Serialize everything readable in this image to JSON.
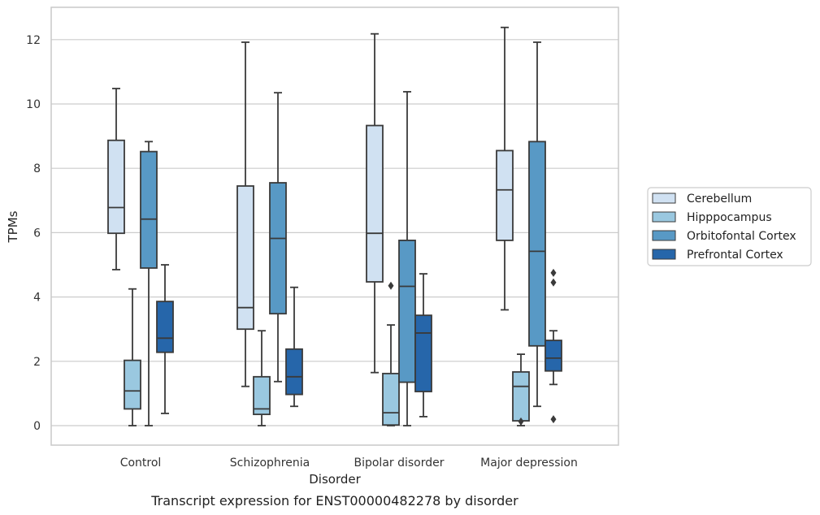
{
  "chart_data": {
    "type": "boxplot",
    "title": "",
    "caption": "Transcript expression for ENST00000482278 by disorder",
    "xlabel": "Disorder",
    "ylabel": "TPMs",
    "ylim": [
      -0.6,
      13
    ],
    "yticks": [
      0,
      2,
      4,
      6,
      8,
      10,
      12
    ],
    "grid": "horizontal",
    "legend_position": "right",
    "categories": [
      "Control",
      "Schizophrenia",
      "Bipolar disorder",
      "Major depression"
    ],
    "series": [
      {
        "name": "Cerebellum",
        "color": "#d0e1f2",
        "boxes": [
          {
            "whislo": 4.85,
            "q1": 5.98,
            "med": 6.78,
            "q3": 8.87,
            "whishi": 10.48,
            "fliers": []
          },
          {
            "whislo": 1.22,
            "q1": 3.0,
            "med": 3.67,
            "q3": 7.45,
            "whishi": 11.92,
            "fliers": []
          },
          {
            "whislo": 1.65,
            "q1": 4.47,
            "med": 5.98,
            "q3": 9.33,
            "whishi": 12.18,
            "fliers": []
          },
          {
            "whislo": 3.6,
            "q1": 5.76,
            "med": 7.33,
            "q3": 8.55,
            "whishi": 12.38,
            "fliers": []
          }
        ]
      },
      {
        "name": "Hipppocampus",
        "color": "#9ac8e0",
        "boxes": [
          {
            "whislo": 0.0,
            "q1": 0.52,
            "med": 1.08,
            "q3": 2.03,
            "whishi": 4.25,
            "fliers": []
          },
          {
            "whislo": 0.0,
            "q1": 0.35,
            "med": 0.52,
            "q3": 1.52,
            "whishi": 2.95,
            "fliers": []
          },
          {
            "whislo": 0.0,
            "q1": 0.02,
            "med": 0.4,
            "q3": 1.62,
            "whishi": 3.13,
            "fliers": [
              4.35
            ]
          },
          {
            "whislo": 0.0,
            "q1": 0.15,
            "med": 1.22,
            "q3": 1.67,
            "whishi": 2.22,
            "fliers": [
              0.13
            ]
          }
        ]
      },
      {
        "name": "Orbitofontal Cortex",
        "color": "#5899c5",
        "boxes": [
          {
            "whislo": 0.0,
            "q1": 4.9,
            "med": 6.42,
            "q3": 8.52,
            "whishi": 8.83,
            "fliers": []
          },
          {
            "whislo": 1.37,
            "q1": 3.48,
            "med": 5.82,
            "q3": 7.55,
            "whishi": 10.35,
            "fliers": []
          },
          {
            "whislo": 0.0,
            "q1": 1.35,
            "med": 4.33,
            "q3": 5.76,
            "whishi": 10.38,
            "fliers": []
          },
          {
            "whislo": 0.6,
            "q1": 2.48,
            "med": 5.42,
            "q3": 8.83,
            "whishi": 11.92,
            "fliers": []
          }
        ]
      },
      {
        "name": "Prefrontal Cortex",
        "color": "#2666aa",
        "boxes": [
          {
            "whislo": 0.38,
            "q1": 2.28,
            "med": 2.72,
            "q3": 3.86,
            "whishi": 5.0,
            "fliers": []
          },
          {
            "whislo": 0.6,
            "q1": 0.97,
            "med": 1.52,
            "q3": 2.38,
            "whishi": 4.3,
            "fliers": []
          },
          {
            "whislo": 0.28,
            "q1": 1.06,
            "med": 2.88,
            "q3": 3.43,
            "whishi": 4.72,
            "fliers": []
          },
          {
            "whislo": 1.28,
            "q1": 1.7,
            "med": 2.1,
            "q3": 2.65,
            "whishi": 2.95,
            "fliers": [
              4.75,
              4.45,
              0.2
            ]
          }
        ]
      }
    ]
  }
}
